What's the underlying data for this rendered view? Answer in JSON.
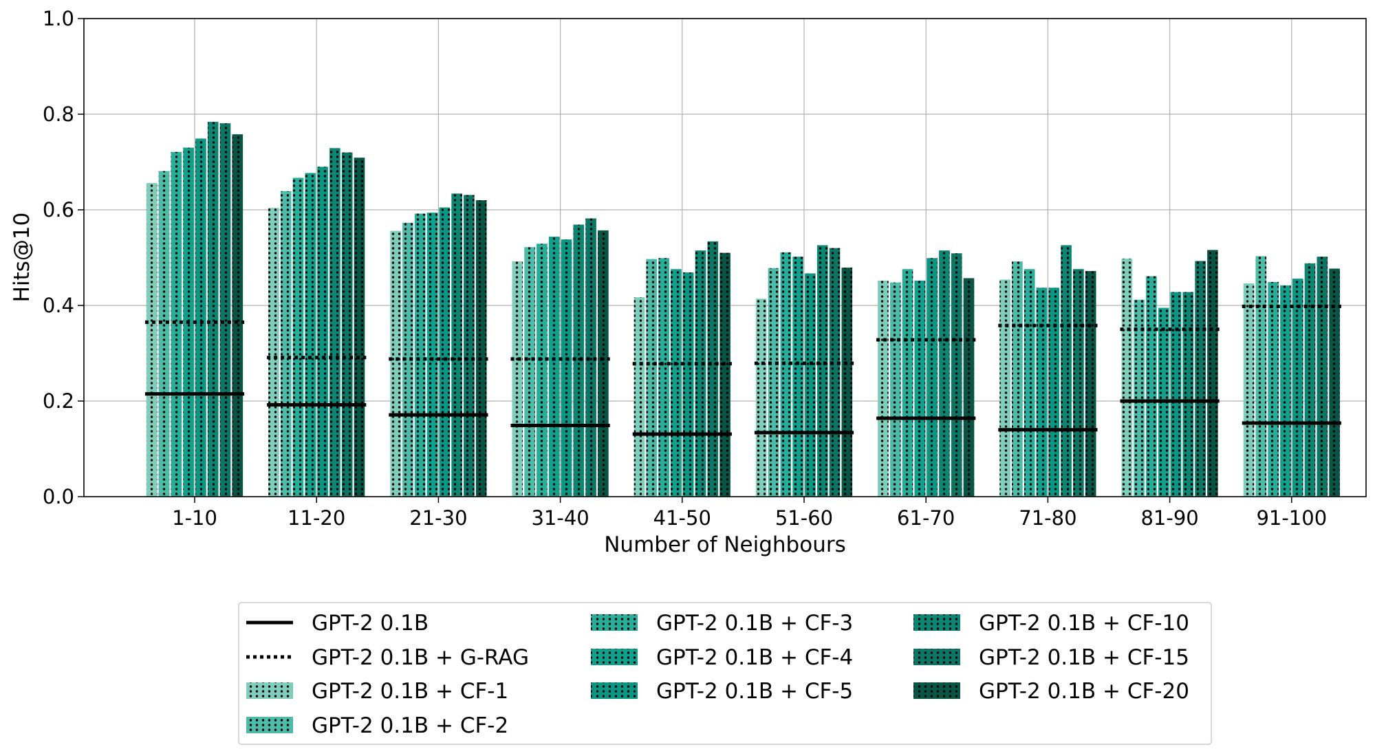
{
  "chart_data": {
    "type": "bar",
    "title": "",
    "xlabel": "Number of Neighbours",
    "ylabel": "Hits@10",
    "ylim": [
      0,
      1.0
    ],
    "yticks": [
      "0.0",
      "0.2",
      "0.4",
      "0.6",
      "0.8",
      "1.0"
    ],
    "grid": true,
    "legend_position": "bottom-center",
    "categories": [
      "1-10",
      "11-20",
      "21-30",
      "31-40",
      "41-50",
      "51-60",
      "61-70",
      "71-80",
      "81-90",
      "91-100"
    ],
    "baselines": [
      {
        "name": "GPT-2 0.1B",
        "style": "solid",
        "values": [
          0.215,
          0.192,
          0.171,
          0.149,
          0.131,
          0.134,
          0.164,
          0.14,
          0.2,
          0.154
        ]
      },
      {
        "name": "GPT-2 0.1B + G-RAG",
        "style": "dotted",
        "values": [
          0.365,
          0.291,
          0.288,
          0.288,
          0.278,
          0.279,
          0.328,
          0.358,
          0.35,
          0.398
        ]
      }
    ],
    "series": [
      {
        "name": "GPT-2 0.1B + CF-1",
        "color": "#7fcdbb",
        "values": [
          0.656,
          0.604,
          0.556,
          0.492,
          0.417,
          0.414,
          0.452,
          0.454,
          0.498,
          0.446
        ]
      },
      {
        "name": "GPT-2 0.1B + CF-2",
        "color": "#4dbba8",
        "values": [
          0.681,
          0.639,
          0.573,
          0.522,
          0.497,
          0.478,
          0.448,
          0.492,
          0.412,
          0.503
        ]
      },
      {
        "name": "GPT-2 0.1B + CF-3",
        "color": "#28ad99",
        "values": [
          0.721,
          0.667,
          0.592,
          0.529,
          0.499,
          0.511,
          0.476,
          0.476,
          0.461,
          0.449
        ]
      },
      {
        "name": "GPT-2 0.1B + CF-4",
        "color": "#11a08c",
        "values": [
          0.73,
          0.677,
          0.594,
          0.544,
          0.476,
          0.502,
          0.452,
          0.437,
          0.395,
          0.442
        ]
      },
      {
        "name": "GPT-2 0.1B + CF-5",
        "color": "#0b9583",
        "values": [
          0.749,
          0.69,
          0.605,
          0.538,
          0.469,
          0.467,
          0.499,
          0.437,
          0.428,
          0.456
        ]
      },
      {
        "name": "GPT-2 0.1B + CF-10",
        "color": "#0c8673",
        "values": [
          0.784,
          0.729,
          0.634,
          0.569,
          0.515,
          0.526,
          0.515,
          0.526,
          0.428,
          0.488
        ]
      },
      {
        "name": "GPT-2 0.1B + CF-15",
        "color": "#0d7564",
        "values": [
          0.781,
          0.72,
          0.631,
          0.582,
          0.534,
          0.52,
          0.509,
          0.476,
          0.493,
          0.502
        ]
      },
      {
        "name": "GPT-2 0.1B + CF-20",
        "color": "#085545",
        "values": [
          0.758,
          0.709,
          0.62,
          0.557,
          0.51,
          0.479,
          0.457,
          0.472,
          0.516,
          0.477
        ]
      }
    ]
  }
}
